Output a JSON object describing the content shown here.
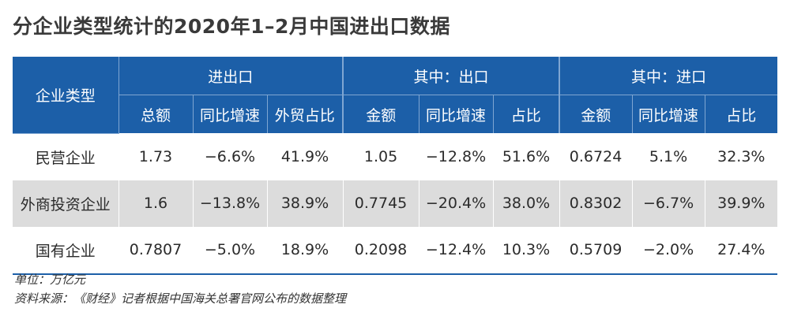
{
  "title": "分企业类型统计的2020年1–2月中国进出口数据",
  "header": {
    "row_label": "企业类型",
    "groups": [
      "进出口",
      "其中：出口",
      "其中：进口"
    ],
    "subcolumns": [
      "总额",
      "同比增速",
      "外贸占比",
      "金额",
      "同比增速",
      "占比",
      "金额",
      "同比增速",
      "占比"
    ]
  },
  "rows": [
    {
      "name": "民营企业",
      "cells": [
        "1.73",
        "−6.6%",
        "41.9%",
        "1.05",
        "−12.8%",
        "51.6%",
        "0.6724",
        "5.1%",
        "32.3%"
      ]
    },
    {
      "name": "外商投资企业",
      "cells": [
        "1.6",
        "−13.8%",
        "38.9%",
        "0.7745",
        "−20.4%",
        "38.0%",
        "0.8302",
        "−6.7%",
        "39.9%"
      ]
    },
    {
      "name": "国有企业",
      "cells": [
        "0.7807",
        "−5.0%",
        "18.9%",
        "0.2098",
        "−12.4%",
        "10.3%",
        "0.5709",
        "−2.0%",
        "27.4%"
      ]
    }
  ],
  "notes": {
    "unit": "单位：万亿元",
    "source": "资料来源：《财经》记者根据中国海关总署官网公布的数据整理"
  }
}
